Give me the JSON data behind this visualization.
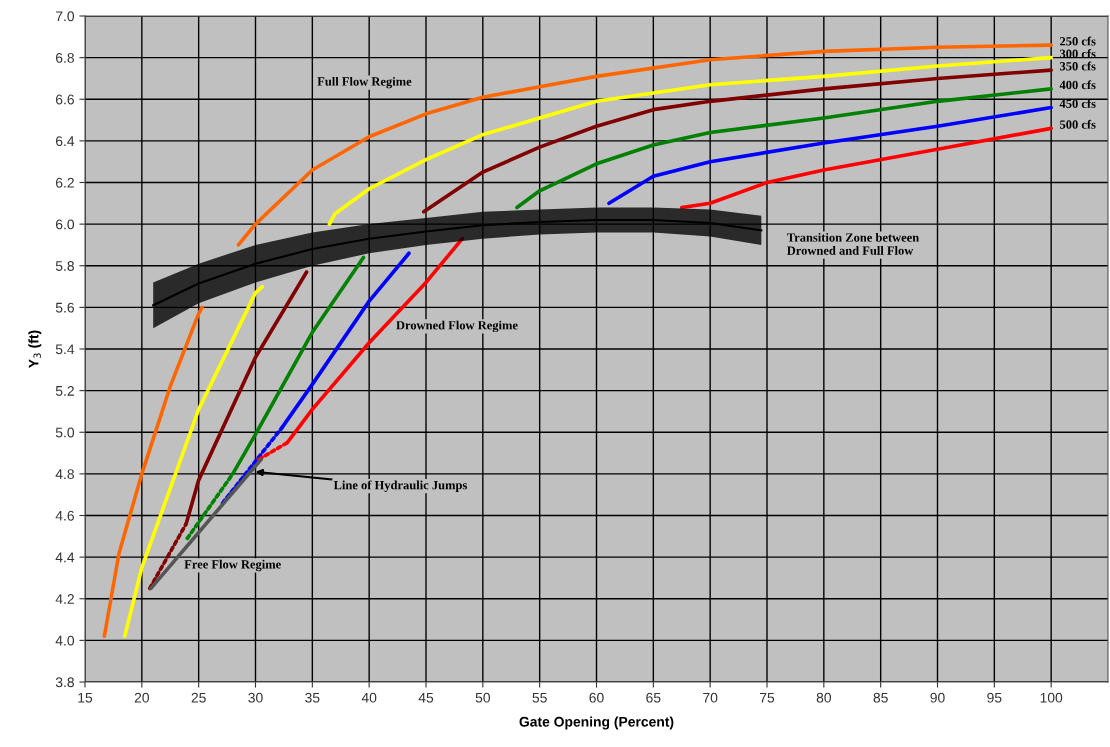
{
  "chart_data": {
    "type": "line",
    "xlabel": "Gate Opening (Percent)",
    "ylabel": "Y$_{3}$ (ft)",
    "xlim": [
      15,
      105
    ],
    "xticks": [
      15,
      20,
      25,
      30,
      35,
      40,
      45,
      50,
      55,
      60,
      65,
      70,
      75,
      80,
      85,
      90,
      95,
      100
    ],
    "ylim": [
      3.8,
      7.0
    ],
    "yticks": [
      3.8,
      {
        "value": 4.0,
        "label": "4.0"
      },
      4.2,
      4.4,
      4.6,
      4.8,
      {
        "value": 5.0,
        "label": "5.0"
      },
      5.2,
      5.4,
      5.6,
      5.8,
      {
        "value": 6.0,
        "label": "6.0"
      },
      6.2,
      6.4,
      6.6,
      6.8,
      {
        "value": 7.0,
        "label": "7.0"
      }
    ],
    "grid": true,
    "legend": false,
    "marker": "none",
    "line_style": "solid",
    "series": [
      {
        "type": "line",
        "color": "#000000",
        "x": [
          21,
          25,
          30,
          35,
          40,
          45,
          50,
          55,
          60,
          65,
          70,
          74.5
        ],
        "values": [
          5.61,
          5.715,
          5.81,
          5.88,
          5.93,
          5.965,
          5.995,
          6.01,
          6.02,
          6.02,
          6.005,
          5.97
        ],
        "lower": [
          5.5,
          5.62,
          5.72,
          5.8,
          5.86,
          5.9,
          5.93,
          5.95,
          5.96,
          5.96,
          5.94,
          5.9
        ],
        "upper": [
          5.72,
          5.81,
          5.9,
          5.96,
          6.0,
          6.03,
          6.06,
          6.07,
          6.08,
          6.08,
          6.07,
          6.04
        ]
      },
      {
        "name": "250 cfs",
        "color": "#ff6600",
        "x": [
          16.7,
          18,
          20,
          22.5,
          25,
          25.3,
          27,
          28.5,
          30,
          35,
          40,
          45,
          50,
          55,
          60,
          70,
          80,
          90,
          100
        ],
        "values": [
          4.02,
          4.42,
          4.8,
          5.22,
          5.57,
          5.6,
          null,
          5.9,
          6.0,
          6.26,
          6.42,
          6.53,
          6.61,
          6.66,
          6.71,
          6.79,
          6.83,
          6.85,
          6.86
        ]
      },
      {
        "name": "300 cfs",
        "color": "#ffff00",
        "x": [
          18.5,
          20,
          25,
          30,
          30.6,
          34,
          36.5,
          37,
          40,
          45,
          50,
          55,
          60,
          70,
          80,
          90,
          100
        ],
        "values": [
          4.02,
          4.35,
          5.11,
          5.67,
          5.7,
          null,
          6.0,
          6.05,
          6.17,
          6.31,
          6.43,
          6.51,
          6.59,
          6.67,
          6.71,
          6.76,
          6.8
        ]
      },
      {
        "name": "350 cfs",
        "color": "#800000",
        "x": [
          23.9,
          25,
          30,
          34.5,
          40,
          44.8,
          50,
          55,
          60,
          65,
          70,
          80,
          90,
          100
        ],
        "values": [
          4.56,
          4.77,
          5.36,
          5.77,
          null,
          6.06,
          6.25,
          6.37,
          6.47,
          6.55,
          6.59,
          6.65,
          6.7,
          6.74
        ]
      },
      {
        "name": "400 cfs",
        "color": "#008000",
        "x": [
          28,
          30,
          35,
          39.5,
          45,
          53,
          55,
          60,
          65,
          70,
          80,
          90,
          100
        ],
        "values": [
          4.8,
          4.99,
          5.48,
          5.84,
          null,
          6.08,
          6.16,
          6.29,
          6.38,
          6.44,
          6.51,
          6.59,
          6.65
        ]
      },
      {
        "name": "450 cfs",
        "color": "#0000ff",
        "x": [
          32.3,
          35,
          40,
          43.5,
          52,
          61.1,
          65,
          70,
          80,
          90,
          100
        ],
        "values": [
          5.02,
          5.23,
          5.63,
          5.86,
          null,
          6.1,
          6.23,
          6.3,
          6.39,
          6.47,
          6.56
        ]
      },
      {
        "name": "500 cfs",
        "color": "#ff0000",
        "x": [
          32.8,
          35,
          40,
          45,
          48.2,
          58,
          67.5,
          70,
          75,
          80,
          90,
          100
        ],
        "values": [
          4.95,
          5.11,
          5.43,
          5.72,
          5.93,
          null,
          6.08,
          6.1,
          6.2,
          6.26,
          6.36,
          6.46
        ]
      },
      {
        "color": "#800000",
        "line_style": "dotted",
        "x": [
          20.7,
          23.9
        ],
        "values": [
          4.25,
          4.56
        ]
      },
      {
        "color": "#008000",
        "line_style": "dotted",
        "x": [
          24.0,
          28
        ],
        "values": [
          4.49,
          4.8
        ]
      },
      {
        "color": "#0000ff",
        "line_style": "dotted",
        "x": [
          27.1,
          32.3
        ],
        "values": [
          4.66,
          5.02
        ]
      },
      {
        "color": "#ff0000",
        "line_style": "dotted",
        "x": [
          30.3,
          32.8
        ],
        "values": [
          4.87,
          4.95
        ]
      },
      {
        "color": "#555555",
        "line_style": "solid",
        "x": [
          20.8,
          30.5
        ],
        "values": [
          4.25,
          4.87
        ]
      }
    ],
    "annotations": [
      "Full Flow Regime",
      "Drowned Flow Regime",
      "Free Flow Regime",
      "Transition Zone between\nDrowned and Full Flow",
      {
        "text": "Line of Hydraulic Jumps",
        "x": 30,
        "y": 4.81
      }
    ]
  }
}
